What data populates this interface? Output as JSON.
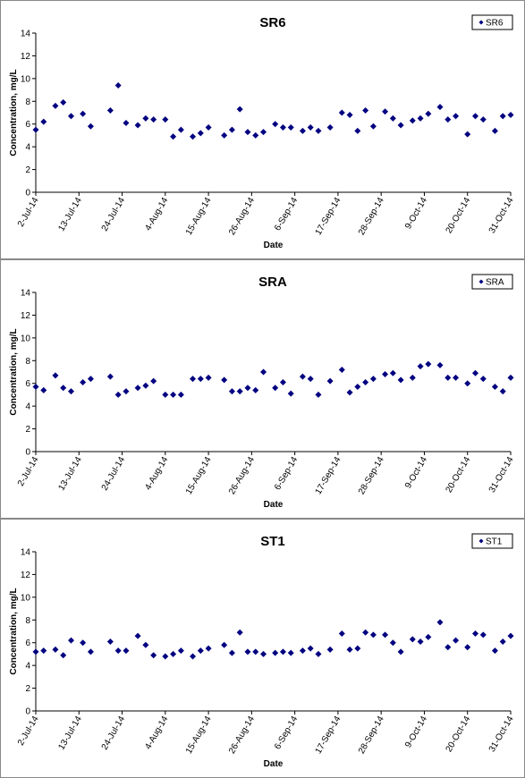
{
  "chart_data": [
    {
      "type": "scatter",
      "title": "SR6",
      "x_label": "Date",
      "y_label": "Concentration, mg/L",
      "legend": "upper right",
      "x": [
        "2014-07-02",
        "2014-07-04",
        "2014-07-07",
        "2014-07-09",
        "2014-07-11",
        "2014-07-14",
        "2014-07-16",
        "2014-07-21",
        "2014-07-23",
        "2014-07-25",
        "2014-07-28",
        "2014-07-30",
        "2014-08-01",
        "2014-08-04",
        "2014-08-06",
        "2014-08-08",
        "2014-08-11",
        "2014-08-13",
        "2014-08-15",
        "2014-08-19",
        "2014-08-21",
        "2014-08-23",
        "2014-08-25",
        "2014-08-27",
        "2014-08-29",
        "2014-09-01",
        "2014-09-03",
        "2014-09-05",
        "2014-09-08",
        "2014-09-10",
        "2014-09-12",
        "2014-09-15",
        "2014-09-18",
        "2014-09-20",
        "2014-09-22",
        "2014-09-24",
        "2014-09-26",
        "2014-09-29",
        "2014-10-01",
        "2014-10-03",
        "2014-10-06",
        "2014-10-08",
        "2014-10-10",
        "2014-10-13",
        "2014-10-15",
        "2014-10-17",
        "2014-10-20",
        "2014-10-22",
        "2014-10-24",
        "2014-10-27",
        "2014-10-29",
        "2014-10-31"
      ],
      "series": [
        {
          "name": "SR6",
          "color": "#000080",
          "values": [
            5.5,
            6.2,
            7.6,
            7.9,
            6.7,
            6.9,
            5.8,
            7.2,
            9.4,
            6.1,
            5.9,
            6.5,
            6.4,
            6.4,
            4.9,
            5.5,
            4.9,
            5.2,
            5.7,
            5.0,
            5.5,
            7.3,
            5.3,
            5.0,
            5.3,
            6.0,
            5.7,
            5.7,
            5.4,
            5.7,
            5.4,
            5.7,
            7.0,
            6.8,
            5.4,
            7.2,
            5.8,
            7.1,
            6.5,
            5.9,
            6.3,
            6.5,
            6.9,
            7.5,
            6.4,
            6.7,
            5.1,
            6.7,
            6.4,
            5.4,
            6.7,
            6.8
          ]
        }
      ],
      "xlim": [
        "2014-07-02",
        "2014-10-31"
      ],
      "xticks": [
        {
          "value": "2014-07-02",
          "label": "2-Jul-14"
        },
        {
          "value": "2014-07-13",
          "label": "13-Jul-14"
        },
        {
          "value": "2014-07-24",
          "label": "24-Jul-14"
        },
        {
          "value": "2014-08-04",
          "label": "4-Aug-14"
        },
        {
          "value": "2014-08-15",
          "label": "15-Aug-14"
        },
        {
          "value": "2014-08-26",
          "label": "26-Aug-14"
        },
        {
          "value": "2014-09-06",
          "label": "6-Sep-14"
        },
        {
          "value": "2014-09-17",
          "label": "17-Sep-14"
        },
        {
          "value": "2014-09-28",
          "label": "28-Sep-14"
        },
        {
          "value": "2014-10-09",
          "label": "9-Oct-14"
        },
        {
          "value": "2014-10-20",
          "label": "20-Oct-14"
        },
        {
          "value": "2014-10-31",
          "label": "31-Oct-14"
        }
      ],
      "ylim": [
        0,
        14
      ],
      "yticks": [
        0,
        2,
        4,
        6,
        8,
        10,
        12,
        14
      ]
    },
    {
      "type": "scatter",
      "title": "SRA",
      "x_label": "Date",
      "y_label": "Concentration, mg/L",
      "legend": "upper right",
      "x": [
        "2014-07-02",
        "2014-07-04",
        "2014-07-07",
        "2014-07-09",
        "2014-07-11",
        "2014-07-14",
        "2014-07-16",
        "2014-07-21",
        "2014-07-23",
        "2014-07-25",
        "2014-07-28",
        "2014-07-30",
        "2014-08-01",
        "2014-08-04",
        "2014-08-06",
        "2014-08-08",
        "2014-08-11",
        "2014-08-13",
        "2014-08-15",
        "2014-08-19",
        "2014-08-21",
        "2014-08-23",
        "2014-08-25",
        "2014-08-27",
        "2014-08-29",
        "2014-09-01",
        "2014-09-03",
        "2014-09-05",
        "2014-09-08",
        "2014-09-10",
        "2014-09-12",
        "2014-09-15",
        "2014-09-18",
        "2014-09-20",
        "2014-09-22",
        "2014-09-24",
        "2014-09-26",
        "2014-09-29",
        "2014-10-01",
        "2014-10-03",
        "2014-10-06",
        "2014-10-08",
        "2014-10-10",
        "2014-10-13",
        "2014-10-15",
        "2014-10-17",
        "2014-10-20",
        "2014-10-22",
        "2014-10-24",
        "2014-10-27",
        "2014-10-29",
        "2014-10-31"
      ],
      "series": [
        {
          "name": "SRA",
          "color": "#000080",
          "values": [
            5.7,
            5.4,
            6.7,
            5.6,
            5.3,
            6.1,
            6.4,
            6.6,
            5.0,
            5.3,
            5.6,
            5.8,
            6.2,
            5.0,
            5.0,
            5.0,
            6.4,
            6.4,
            6.5,
            6.3,
            5.3,
            5.3,
            5.6,
            5.4,
            7.0,
            5.6,
            6.1,
            5.1,
            6.6,
            6.4,
            5.0,
            6.2,
            7.2,
            5.2,
            5.7,
            6.1,
            6.4,
            6.8,
            6.9,
            6.3,
            6.5,
            7.5,
            7.7,
            7.6,
            6.5,
            6.5,
            6.0,
            6.9,
            6.4,
            5.7,
            5.3,
            6.5
          ]
        }
      ],
      "xlim": [
        "2014-07-02",
        "2014-10-31"
      ],
      "xticks": [
        {
          "value": "2014-07-02",
          "label": "2-Jul-14"
        },
        {
          "value": "2014-07-13",
          "label": "13-Jul-14"
        },
        {
          "value": "2014-07-24",
          "label": "24-Jul-14"
        },
        {
          "value": "2014-08-04",
          "label": "4-Aug-14"
        },
        {
          "value": "2014-08-15",
          "label": "15-Aug-14"
        },
        {
          "value": "2014-08-26",
          "label": "26-Aug-14"
        },
        {
          "value": "2014-09-06",
          "label": "6-Sep-14"
        },
        {
          "value": "2014-09-17",
          "label": "17-Sep-14"
        },
        {
          "value": "2014-09-28",
          "label": "28-Sep-14"
        },
        {
          "value": "2014-10-09",
          "label": "9-Oct-14"
        },
        {
          "value": "2014-10-20",
          "label": "20-Oct-14"
        },
        {
          "value": "2014-10-31",
          "label": "31-Oct-14"
        }
      ],
      "ylim": [
        0,
        14
      ],
      "yticks": [
        0,
        2,
        4,
        6,
        8,
        10,
        12,
        14
      ]
    },
    {
      "type": "scatter",
      "title": "ST1",
      "x_label": "Date",
      "y_label": "Concentration, mg/L",
      "legend": "upper right",
      "x": [
        "2014-07-02",
        "2014-07-04",
        "2014-07-07",
        "2014-07-09",
        "2014-07-11",
        "2014-07-14",
        "2014-07-16",
        "2014-07-21",
        "2014-07-23",
        "2014-07-25",
        "2014-07-28",
        "2014-07-30",
        "2014-08-01",
        "2014-08-04",
        "2014-08-06",
        "2014-08-08",
        "2014-08-11",
        "2014-08-13",
        "2014-08-15",
        "2014-08-19",
        "2014-08-21",
        "2014-08-23",
        "2014-08-25",
        "2014-08-27",
        "2014-08-29",
        "2014-09-01",
        "2014-09-03",
        "2014-09-05",
        "2014-09-08",
        "2014-09-10",
        "2014-09-12",
        "2014-09-15",
        "2014-09-18",
        "2014-09-20",
        "2014-09-22",
        "2014-09-24",
        "2014-09-26",
        "2014-09-29",
        "2014-10-01",
        "2014-10-03",
        "2014-10-06",
        "2014-10-08",
        "2014-10-10",
        "2014-10-13",
        "2014-10-15",
        "2014-10-17",
        "2014-10-20",
        "2014-10-22",
        "2014-10-24",
        "2014-10-27",
        "2014-10-29",
        "2014-10-31"
      ],
      "series": [
        {
          "name": "ST1",
          "color": "#000080",
          "values": [
            5.2,
            5.3,
            5.4,
            4.9,
            6.2,
            6.0,
            5.2,
            6.1,
            5.3,
            5.3,
            6.6,
            5.8,
            4.9,
            4.8,
            5.0,
            5.3,
            4.8,
            5.3,
            5.5,
            5.8,
            5.1,
            6.9,
            5.2,
            5.2,
            5.0,
            5.1,
            5.2,
            5.1,
            5.3,
            5.5,
            5.0,
            5.4,
            6.8,
            5.4,
            5.5,
            6.9,
            6.7,
            6.7,
            6.0,
            5.2,
            6.3,
            6.1,
            6.5,
            7.8,
            5.6,
            6.2,
            5.6,
            6.8,
            6.7,
            5.3,
            6.1,
            6.6
          ]
        }
      ],
      "xlim": [
        "2014-07-02",
        "2014-10-31"
      ],
      "xticks": [
        {
          "value": "2014-07-02",
          "label": "2-Jul-14"
        },
        {
          "value": "2014-07-13",
          "label": "13-Jul-14"
        },
        {
          "value": "2014-07-24",
          "label": "24-Jul-14"
        },
        {
          "value": "2014-08-04",
          "label": "4-Aug-14"
        },
        {
          "value": "2014-08-15",
          "label": "15-Aug-14"
        },
        {
          "value": "2014-08-26",
          "label": "26-Aug-14"
        },
        {
          "value": "2014-09-06",
          "label": "6-Sep-14"
        },
        {
          "value": "2014-09-17",
          "label": "17-Sep-14"
        },
        {
          "value": "2014-09-28",
          "label": "28-Sep-14"
        },
        {
          "value": "2014-10-09",
          "label": "9-Oct-14"
        },
        {
          "value": "2014-10-20",
          "label": "20-Oct-14"
        },
        {
          "value": "2014-10-31",
          "label": "31-Oct-14"
        }
      ],
      "ylim": [
        0,
        14
      ],
      "yticks": [
        0,
        2,
        4,
        6,
        8,
        10,
        12,
        14
      ]
    }
  ]
}
